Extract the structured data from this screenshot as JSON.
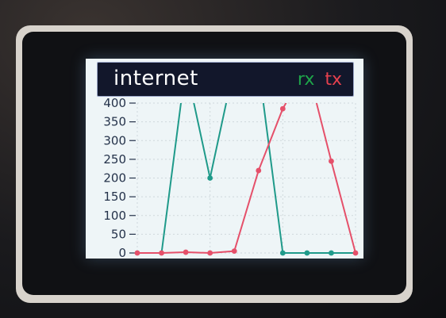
{
  "header": {
    "title": "internet",
    "legend_rx": "rx",
    "legend_tx": "tx"
  },
  "colors": {
    "rx": "#1f9a8a",
    "tx": "#e5506a",
    "legend_rx": "#1ea54a",
    "legend_tx": "#e5404e",
    "grid": "#cfd8dc"
  },
  "chart_data": {
    "type": "line",
    "title": "internet",
    "x": [
      0,
      1,
      2,
      3,
      4,
      5,
      6,
      7,
      8,
      9
    ],
    "ylim": [
      0,
      400
    ],
    "yticks": [
      0,
      50,
      100,
      150,
      200,
      250,
      300,
      350,
      400
    ],
    "grid": true,
    "legend_placement": "top-right",
    "series": [
      {
        "name": "rx",
        "values": [
          0,
          0,
          500,
          200,
          500,
          500,
          0,
          0,
          0,
          0
        ],
        "markers": [
          false,
          false,
          false,
          true,
          false,
          false,
          true,
          true,
          true,
          false
        ]
      },
      {
        "name": "tx",
        "values": [
          0,
          0,
          2,
          0,
          5,
          220,
          385,
          500,
          245,
          0
        ],
        "markers": [
          true,
          true,
          true,
          true,
          true,
          true,
          true,
          false,
          true,
          true
        ]
      }
    ]
  }
}
